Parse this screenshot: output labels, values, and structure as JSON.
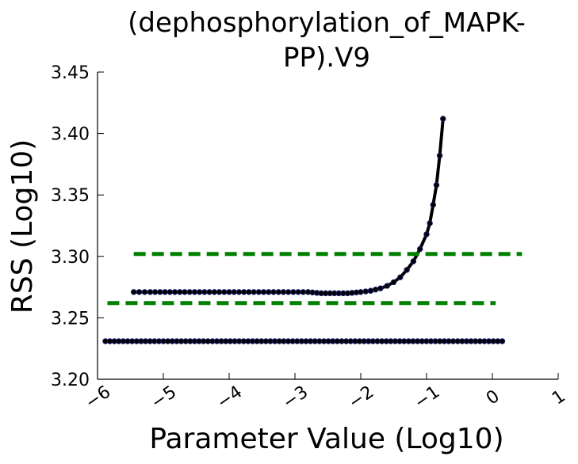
{
  "chart_data": {
    "type": "scatter",
    "title_lines": [
      "(dephosphorylation_of_MAPK-",
      "PP).V9"
    ],
    "xlabel": "Parameter Value (Log10)",
    "ylabel": "RSS (Log10)",
    "xlim": [
      -6,
      1
    ],
    "ylim": [
      3.2,
      3.45
    ],
    "x_ticks": [
      -6,
      -5,
      -4,
      -3,
      -2,
      -1,
      0,
      1
    ],
    "x_tick_labels": [
      "−6",
      "−5",
      "−4",
      "−3",
      "−2",
      "−1",
      "0",
      "1"
    ],
    "y_ticks": [
      3.2,
      3.25,
      3.3,
      3.35,
      3.4,
      3.45
    ],
    "y_tick_labels": [
      "3.20",
      "3.25",
      "3.30",
      "3.35",
      "3.40",
      "3.45"
    ],
    "grid": false,
    "colors": {
      "curve": "#000000",
      "marker_edge": "#1a1a66",
      "threshold": "#008000"
    },
    "series": [
      {
        "style": "flat-line-with-markers",
        "x_start": -5.88,
        "x_end": 0.15,
        "y": 3.231,
        "markers": 90
      },
      {
        "style": "curve-with-markers",
        "points": [
          [
            -5.45,
            3.271
          ],
          [
            -5.2,
            3.271
          ],
          [
            -4.9,
            3.271
          ],
          [
            -4.6,
            3.271
          ],
          [
            -4.3,
            3.271
          ],
          [
            -4.0,
            3.271
          ],
          [
            -3.7,
            3.271
          ],
          [
            -3.4,
            3.271
          ],
          [
            -3.1,
            3.271
          ],
          [
            -2.8,
            3.271
          ],
          [
            -2.6,
            3.27
          ],
          [
            -2.4,
            3.27
          ],
          [
            -2.2,
            3.27
          ],
          [
            -2.0,
            3.271
          ],
          [
            -1.85,
            3.272
          ],
          [
            -1.7,
            3.274
          ],
          [
            -1.6,
            3.276
          ],
          [
            -1.5,
            3.279
          ],
          [
            -1.4,
            3.283
          ],
          [
            -1.3,
            3.289
          ],
          [
            -1.2,
            3.296
          ],
          [
            -1.1,
            3.306
          ],
          [
            -1.0,
            3.318
          ],
          [
            -0.95,
            3.327
          ],
          [
            -0.9,
            3.342
          ],
          [
            -0.85,
            3.358
          ],
          [
            -0.8,
            3.382
          ],
          [
            -0.75,
            3.412
          ]
        ]
      },
      {
        "style": "dashed-threshold",
        "x_start": -5.45,
        "x_end": 0.45,
        "y": 3.302
      },
      {
        "style": "dashed-threshold",
        "x_start": -5.85,
        "x_end": 0.05,
        "y": 3.262
      }
    ]
  }
}
